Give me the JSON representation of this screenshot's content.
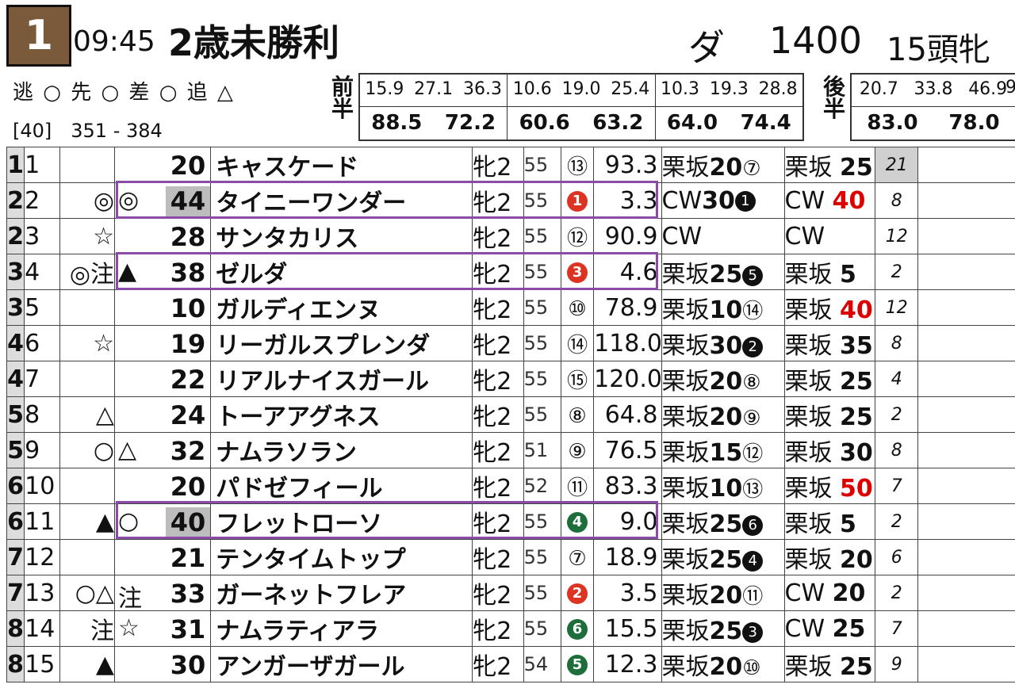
{
  "header": {
    "race_number": "1",
    "time": "09:45",
    "title": "2歳未勝利",
    "surface": "ダ",
    "distance": "1400",
    "field": "15頭牝"
  },
  "legend": "逃 ○ 先 ○ 差 ○ 追 △",
  "range": "[40]　351 - 384",
  "first_half": {
    "label": "前半",
    "groups": [
      {
        "splits": [
          "15.9",
          "27.1",
          "36.3"
        ],
        "totals": [
          "88.5",
          "72.2"
        ]
      },
      {
        "splits": [
          "10.6",
          "19.0",
          "25.4"
        ],
        "totals": [
          "60.6",
          "63.2"
        ]
      },
      {
        "splits": [
          "10.3",
          "19.3",
          "28.8"
        ],
        "totals": [
          "64.0",
          "74.4"
        ]
      }
    ]
  },
  "second_half": {
    "label": "後半",
    "groups": [
      {
        "splits": [
          "20.7",
          "33.8",
          "46.9"
        ],
        "totals": [
          "83.0",
          "78.0"
        ]
      }
    ],
    "cut": "9"
  },
  "entries": [
    {
      "waku": "1",
      "num": "1",
      "m1": "",
      "m2": "",
      "rating": "20",
      "name": "キャスケード",
      "sex": "牝2",
      "weight": "55",
      "pop": "⑬",
      "pop_style": "wh",
      "odds": "93.3",
      "t1_course": "栗坂",
      "t1_val": "20",
      "t1_rank": "⑦",
      "t2_course": "栗坂",
      "t2_val": "25",
      "t2_red": false,
      "t3": "21",
      "shade": true
    },
    {
      "waku": "2",
      "num": "2",
      "m1": "◎",
      "m2": "◎",
      "rating": "44",
      "name": "タイニーワンダー",
      "sex": "牝2",
      "weight": "55",
      "pop": "1",
      "pop_style": "red",
      "odds": "3.3",
      "t1_course": "CW",
      "t1_val": "30",
      "t1_rank": "1",
      "t2_course": "CW",
      "t2_val": "40",
      "t2_red": true,
      "t3": "8",
      "hl": true
    },
    {
      "waku": "2",
      "num": "3",
      "m1": "☆",
      "m2": "",
      "rating": "28",
      "name": "サンタカリス",
      "sex": "牝2",
      "weight": "55",
      "pop": "⑫",
      "pop_style": "wh",
      "odds": "90.9",
      "t1_course": "CW",
      "t1_val": "",
      "t1_rank": "",
      "t2_course": "CW",
      "t2_val": "",
      "t2_red": false,
      "t3": "12"
    },
    {
      "waku": "3",
      "num": "4",
      "m1": "◎注",
      "m2": "▲",
      "rating": "38",
      "name": "ゼルダ",
      "sex": "牝2",
      "weight": "55",
      "pop": "3",
      "pop_style": "red",
      "odds": "4.6",
      "t1_course": "栗坂",
      "t1_val": "25",
      "t1_rank": "5",
      "t2_course": "栗坂",
      "t2_val": "5",
      "t2_red": false,
      "t3": "2"
    },
    {
      "waku": "3",
      "num": "5",
      "m1": "",
      "m2": "",
      "rating": "10",
      "name": "ガルディエンヌ",
      "sex": "牝2",
      "weight": "55",
      "pop": "⑩",
      "pop_style": "wh",
      "odds": "78.9",
      "t1_course": "栗坂",
      "t1_val": "10",
      "t1_rank": "⑭",
      "t2_course": "栗坂",
      "t2_val": "40",
      "t2_red": true,
      "t3": "12"
    },
    {
      "waku": "4",
      "num": "6",
      "m1": "☆",
      "m2": "",
      "rating": "19",
      "name": "リーガルスプレンダ",
      "sex": "牝2",
      "weight": "55",
      "pop": "⑭",
      "pop_style": "wh",
      "odds": "118.0",
      "t1_course": "栗坂",
      "t1_val": "30",
      "t1_rank": "2",
      "t2_course": "栗坂",
      "t2_val": "35",
      "t2_red": false,
      "t3": "8"
    },
    {
      "waku": "4",
      "num": "7",
      "m1": "",
      "m2": "",
      "rating": "22",
      "name": "リアルナイスガール",
      "sex": "牝2",
      "weight": "55",
      "pop": "⑮",
      "pop_style": "wh",
      "odds": "120.0",
      "t1_course": "栗坂",
      "t1_val": "20",
      "t1_rank": "⑧",
      "t2_course": "栗坂",
      "t2_val": "25",
      "t2_red": false,
      "t3": "4"
    },
    {
      "waku": "5",
      "num": "8",
      "m1": "△",
      "m2": "",
      "rating": "24",
      "name": "トーアアグネス",
      "sex": "牝2",
      "weight": "55",
      "pop": "⑧",
      "pop_style": "wh",
      "odds": "64.8",
      "t1_course": "栗坂",
      "t1_val": "20",
      "t1_rank": "⑨",
      "t2_course": "栗坂",
      "t2_val": "25",
      "t2_red": false,
      "t3": "2"
    },
    {
      "waku": "5",
      "num": "9",
      "m1": "○",
      "m2": "△",
      "rating": "32",
      "name": "ナムラソラン",
      "sex": "牝2",
      "weight": "51",
      "pop": "⑨",
      "pop_style": "wh",
      "odds": "76.5",
      "t1_course": "栗坂",
      "t1_val": "15",
      "t1_rank": "⑫",
      "t2_course": "栗坂",
      "t2_val": "30",
      "t2_red": false,
      "t3": "8"
    },
    {
      "waku": "6",
      "num": "10",
      "m1": "",
      "m2": "",
      "rating": "20",
      "name": "パドゼフィール",
      "sex": "牝2",
      "weight": "52",
      "pop": "⑪",
      "pop_style": "wh",
      "odds": "83.3",
      "t1_course": "栗坂",
      "t1_val": "10",
      "t1_rank": "⑬",
      "t2_course": "栗坂",
      "t2_val": "50",
      "t2_red": true,
      "t3": "7"
    },
    {
      "waku": "6",
      "num": "11",
      "m1": "▲",
      "m2": "○",
      "rating": "40",
      "name": "フレットローソ",
      "sex": "牝2",
      "weight": "55",
      "pop": "4",
      "pop_style": "grn",
      "odds": "9.0",
      "t1_course": "栗坂",
      "t1_val": "25",
      "t1_rank": "6",
      "t2_course": "栗坂",
      "t2_val": "5",
      "t2_red": false,
      "t3": "2",
      "hl": true
    },
    {
      "waku": "7",
      "num": "12",
      "m1": "",
      "m2": "",
      "rating": "21",
      "name": "テンタイムトップ",
      "sex": "牝2",
      "weight": "55",
      "pop": "⑦",
      "pop_style": "wh",
      "odds": "18.9",
      "t1_course": "栗坂",
      "t1_val": "25",
      "t1_rank": "4",
      "t2_course": "栗坂",
      "t2_val": "20",
      "t2_red": false,
      "t3": "6"
    },
    {
      "waku": "7",
      "num": "13",
      "m1": "○△",
      "m2": "注",
      "rating": "33",
      "name": "ガーネットフレア",
      "sex": "牝2",
      "weight": "55",
      "pop": "2",
      "pop_style": "red",
      "odds": "3.5",
      "t1_course": "栗坂",
      "t1_val": "20",
      "t1_rank": "⑪",
      "t2_course": "CW",
      "t2_val": "20",
      "t2_red": false,
      "t3": "2"
    },
    {
      "waku": "8",
      "num": "14",
      "m1": "注",
      "m2": "☆",
      "rating": "31",
      "name": "ナムラティアラ",
      "sex": "牝2",
      "weight": "55",
      "pop": "6",
      "pop_style": "grn",
      "odds": "15.5",
      "t1_course": "栗坂",
      "t1_val": "25",
      "t1_rank": "3",
      "t2_course": "CW",
      "t2_val": "25",
      "t2_red": false,
      "t3": "7"
    },
    {
      "waku": "8",
      "num": "15",
      "m1": "▲",
      "m2": "",
      "rating": "30",
      "name": "アンガーザガール",
      "sex": "牝2",
      "weight": "54",
      "pop": "5",
      "pop_style": "grn",
      "odds": "12.3",
      "t1_course": "栗坂",
      "t1_val": "20",
      "t1_rank": "⑩",
      "t2_course": "栗坂",
      "t2_val": "25",
      "t2_red": false,
      "t3": "9"
    }
  ],
  "colors": {
    "highlight": "#8b4ca8",
    "race_badge": "#7a5a3a",
    "red": "#d32f2f",
    "green": "#1d6e3a"
  }
}
